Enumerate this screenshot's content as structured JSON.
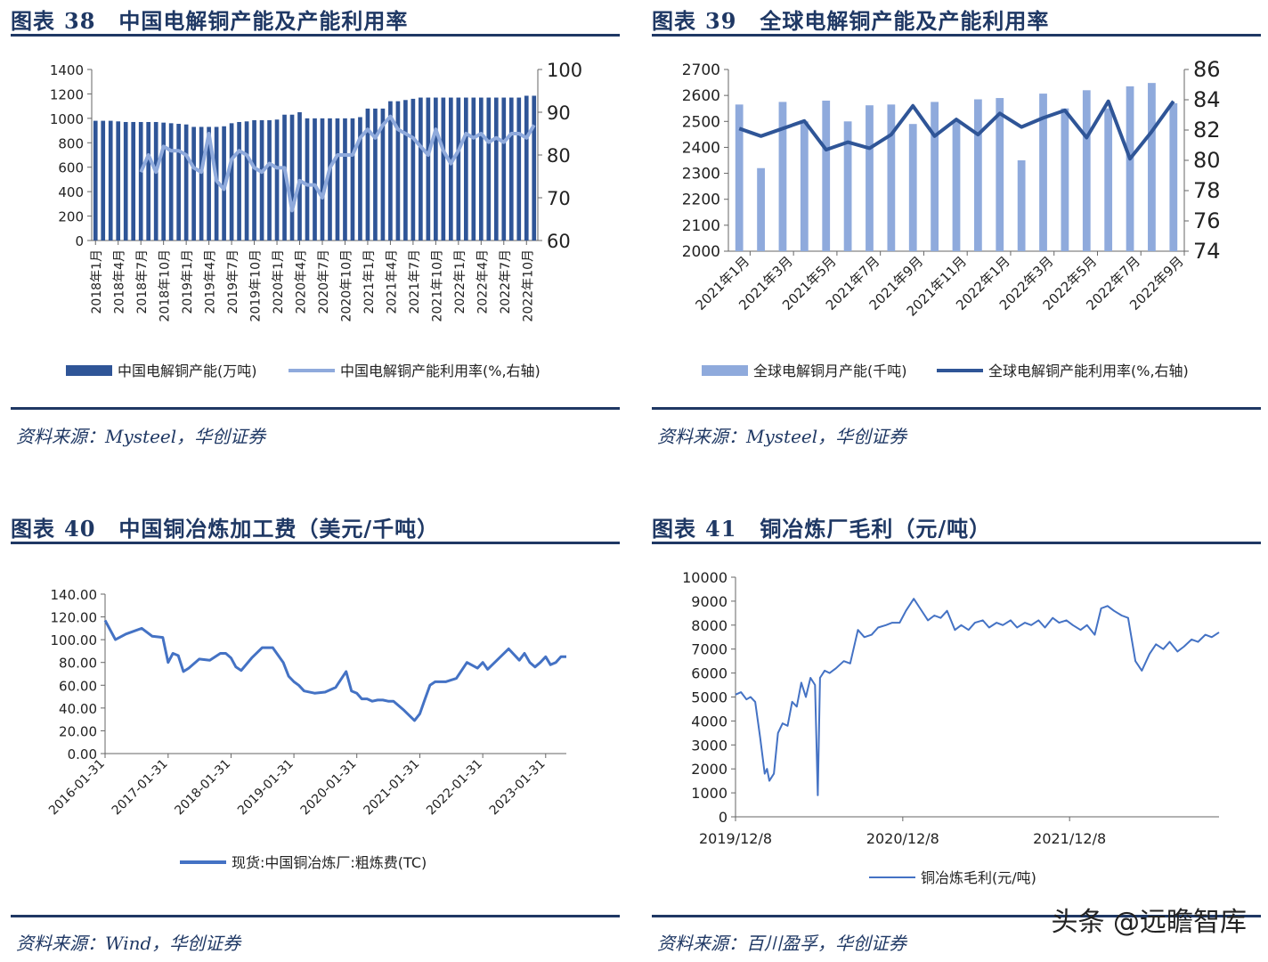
{
  "panels": [
    {
      "title_label": "图表",
      "title_num": "38",
      "title_text": "中国电解铜产能及产能利用率",
      "source": "资料来源：Mysteel，华创证券"
    },
    {
      "title_label": "图表",
      "title_num": "39",
      "title_text": "全球电解铜产能及产能利用率",
      "source": "资料来源：Mysteel，华创证券"
    },
    {
      "title_label": "图表",
      "title_num": "40",
      "title_text": "中国铜冶炼加工费（美元/千吨）",
      "source": "资料来源：Wind，华创证券"
    },
    {
      "title_label": "图表",
      "title_num": "41",
      "title_text": "铜冶炼厂毛利（元/吨）",
      "source": "资料来源：百川盈孚，华创证券"
    }
  ],
  "watermark": "头条 @远瞻智库",
  "chart_data": [
    {
      "type": "bar+line",
      "colors": {
        "bar": "#2f5597",
        "line": "#8faadc"
      },
      "categories": [
        "2018年1月",
        "2018年2月",
        "2018年3月",
        "2018年4月",
        "2018年5月",
        "2018年6月",
        "2018年7月",
        "2018年8月",
        "2018年9月",
        "2018年10月",
        "2018年11月",
        "2018年12月",
        "2019年1月",
        "2019年2月",
        "2019年3月",
        "2019年4月",
        "2019年5月",
        "2019年6月",
        "2019年7月",
        "2019年8月",
        "2019年9月",
        "2019年10月",
        "2019年11月",
        "2019年12月",
        "2020年1月",
        "2020年2月",
        "2020年3月",
        "2020年4月",
        "2020年5月",
        "2020年6月",
        "2020年7月",
        "2020年8月",
        "2020年9月",
        "2020年10月",
        "2020年11月",
        "2020年12月",
        "2021年1月",
        "2021年2月",
        "2021年3月",
        "2021年4月",
        "2021年5月",
        "2021年6月",
        "2021年7月",
        "2021年8月",
        "2021年9月",
        "2021年10月",
        "2021年11月",
        "2021年12月",
        "2022年1月",
        "2022年2月",
        "2022年3月",
        "2022年4月",
        "2022年5月",
        "2022年6月",
        "2022年7月",
        "2022年8月",
        "2022年9月",
        "2022年10月",
        "2022年11月"
      ],
      "x_tick_labels": [
        "2018年1月",
        "2018年4月",
        "2018年7月",
        "2018年10月",
        "2019年1月",
        "2019年4月",
        "2019年7月",
        "2019年10月",
        "2020年1月",
        "2020年4月",
        "2020年7月",
        "2020年10月",
        "2021年1月",
        "2021年4月",
        "2021年7月",
        "2021年10月",
        "2022年1月",
        "2022年4月",
        "2022年7月",
        "2022年10月"
      ],
      "series": [
        {
          "name": "中国电解铜产能(万吨)",
          "axis": "left",
          "values": [
            980,
            980,
            980,
            975,
            970,
            970,
            970,
            970,
            970,
            965,
            960,
            955,
            950,
            930,
            930,
            930,
            930,
            935,
            960,
            970,
            975,
            985,
            985,
            985,
            990,
            1030,
            1030,
            1050,
            1000,
            1000,
            1000,
            1000,
            1000,
            1000,
            1000,
            1010,
            1080,
            1080,
            1080,
            1140,
            1140,
            1150,
            1160,
            1170,
            1170,
            1170,
            1170,
            1170,
            1170,
            1170,
            1170,
            1170,
            1170,
            1170,
            1170,
            1170,
            1170,
            1185,
            1185
          ]
        },
        {
          "name": "中国电解铜产能利用率(%,右轴)",
          "axis": "right",
          "values": [
            null,
            null,
            null,
            null,
            null,
            null,
            76,
            80,
            76,
            82,
            81,
            81,
            80,
            77,
            76,
            85,
            74,
            72,
            79,
            81,
            80,
            77,
            76,
            78,
            77,
            77,
            67,
            74,
            73,
            73,
            70,
            77,
            80,
            80,
            80,
            84,
            86,
            84,
            87,
            89,
            86,
            85,
            84,
            82,
            80,
            86,
            81,
            78,
            81,
            85,
            84,
            85,
            83,
            84,
            83,
            85,
            85,
            84,
            87
          ]
        }
      ],
      "ylim_left": [
        0,
        1400
      ],
      "yticks_left": [
        "0",
        "200",
        "400",
        "600",
        "800",
        "1000",
        "1200",
        "1400"
      ],
      "ylim_right": [
        60,
        100
      ],
      "yticks_right": [
        "60",
        "70",
        "80",
        "90",
        "100"
      ],
      "legend": [
        "中国电解铜产能(万吨)",
        "中国电解铜产能利用率(%,右轴)"
      ]
    },
    {
      "type": "bar+line",
      "colors": {
        "bar": "#8faadc",
        "line": "#2f5597"
      },
      "categories": [
        "2021年1月",
        "2021年2月",
        "2021年3月",
        "2021年4月",
        "2021年5月",
        "2021年6月",
        "2021年7月",
        "2021年8月",
        "2021年9月",
        "2021年10月",
        "2021年11月",
        "2021年12月",
        "2022年1月",
        "2022年2月",
        "2022年3月",
        "2022年4月",
        "2022年5月",
        "2022年6月",
        "2022年7月",
        "2022年8月",
        "2022年9月"
      ],
      "x_tick_labels": [
        "2021年1月",
        "2021年3月",
        "2021年5月",
        "2021年7月",
        "2021年9月",
        "2021年11月",
        "2022年1月",
        "2022年3月",
        "2022年5月",
        "2022年7月",
        "2022年9月"
      ],
      "series": [
        {
          "name": "全球电解铜月产能(千吨)",
          "axis": "left",
          "values": [
            2565,
            2320,
            2575,
            2500,
            2580,
            2500,
            2562,
            2565,
            2490,
            2575,
            2505,
            2585,
            2590,
            2350,
            2607,
            2550,
            2620,
            2550,
            2635,
            2648,
            2570
          ]
        },
        {
          "name": "全球电解铜产能利用率(%,右轴)",
          "axis": "right",
          "values": [
            82.1,
            81.6,
            82.1,
            82.6,
            80.7,
            81.2,
            80.8,
            81.7,
            83.6,
            81.6,
            82.7,
            81.7,
            83.1,
            82.2,
            82.8,
            83.3,
            81.5,
            83.9,
            80.1,
            81.9,
            83.9
          ]
        }
      ],
      "ylim_left": [
        2000,
        2700
      ],
      "yticks_left": [
        "2000",
        "2100",
        "2200",
        "2300",
        "2400",
        "2500",
        "2600",
        "2700"
      ],
      "ylim_right": [
        74,
        86
      ],
      "yticks_right": [
        "74",
        "76",
        "78",
        "80",
        "82",
        "84",
        "86"
      ],
      "legend": [
        "全球电解铜月产能(千吨)",
        "全球电解铜产能利用率(%,右轴)"
      ]
    },
    {
      "type": "line",
      "colors": {
        "line": "#4472c4"
      },
      "x_tick_labels": [
        "2016-01-31",
        "2017-01-31",
        "2018-01-31",
        "2019-01-31",
        "2020-01-31",
        "2021-01-31",
        "2022-01-31",
        "2023-01-31"
      ],
      "xlim": [
        "2016-01-31",
        "2023-05-31"
      ],
      "series": [
        {
          "name": "现货:中国铜冶炼厂:粗炼费(TC)",
          "x": [
            "2016-01-31",
            "2016-03-31",
            "2016-05-31",
            "2016-08-31",
            "2016-10-31",
            "2016-12-31",
            "2017-01-31",
            "2017-02-28",
            "2017-03-31",
            "2017-04-30",
            "2017-05-31",
            "2017-07-31",
            "2017-09-30",
            "2017-11-30",
            "2017-12-31",
            "2018-01-31",
            "2018-02-28",
            "2018-03-31",
            "2018-05-31",
            "2018-07-31",
            "2018-09-30",
            "2018-11-30",
            "2018-12-31",
            "2019-01-31",
            "2019-02-28",
            "2019-03-31",
            "2019-05-31",
            "2019-07-31",
            "2019-09-30",
            "2019-11-30",
            "2019-12-31",
            "2020-01-31",
            "2020-02-29",
            "2020-03-31",
            "2020-04-30",
            "2020-05-31",
            "2020-06-30",
            "2020-07-31",
            "2020-08-31",
            "2020-10-31",
            "2020-12-31",
            "2021-01-31",
            "2021-02-28",
            "2021-03-31",
            "2021-04-30",
            "2021-05-31",
            "2021-06-30",
            "2021-08-31",
            "2021-10-31",
            "2021-12-31",
            "2022-01-31",
            "2022-02-28",
            "2022-04-30",
            "2022-06-30",
            "2022-08-31",
            "2022-09-30",
            "2022-10-31",
            "2022-11-30",
            "2022-12-31",
            "2023-01-31",
            "2023-02-28",
            "2023-03-31",
            "2023-04-30",
            "2023-05-31"
          ],
          "values": [
            117,
            100,
            105,
            110,
            103,
            102,
            80,
            88,
            86,
            72,
            75,
            83,
            82,
            88,
            88,
            84,
            76,
            73,
            84,
            93,
            93,
            80,
            68,
            63,
            60,
            55,
            53,
            54,
            58,
            72,
            55,
            53,
            48,
            48,
            46,
            47,
            47,
            46,
            46,
            38,
            29,
            35,
            47,
            60,
            63,
            63,
            63,
            66,
            80,
            75,
            80,
            74,
            83,
            92,
            82,
            88,
            80,
            76,
            80,
            85,
            78,
            80,
            85,
            85
          ]
        }
      ],
      "ylim": [
        0,
        140
      ],
      "yticks": [
        "0.00",
        "20.00",
        "40.00",
        "60.00",
        "80.00",
        "100.00",
        "120.00",
        "140.00"
      ],
      "legend": [
        "现货:中国铜冶炼厂:粗炼费(TC)"
      ]
    },
    {
      "type": "line",
      "colors": {
        "line": "#4472c4"
      },
      "x_tick_labels": [
        "2019/12/8",
        "2020/12/8",
        "2021/12/8"
      ],
      "xlim": [
        "2019/12/8",
        "2022/10/31"
      ],
      "series": [
        {
          "name": "铜冶炼毛利(元/吨)",
          "x": [
            "2019/12/8",
            "2019/12/20",
            "2020/1/1",
            "2020/1/10",
            "2020/1/20",
            "2020/1/31",
            "2020/2/10",
            "2020/2/15",
            "2020/2/20",
            "2020/3/1",
            "2020/3/10",
            "2020/3/20",
            "2020/3/31",
            "2020/4/10",
            "2020/4/20",
            "2020/4/30",
            "2020/5/10",
            "2020/5/20",
            "2020/5/30",
            "2020/6/5",
            "2020/6/10",
            "2020/6/20",
            "2020/7/1",
            "2020/7/15",
            "2020/8/1",
            "2020/8/15",
            "2020/9/1",
            "2020/9/15",
            "2020/10/1",
            "2020/10/15",
            "2020/11/1",
            "2020/11/15",
            "2020/12/1",
            "2020/12/15",
            "2021/1/1",
            "2021/1/15",
            "2021/2/1",
            "2021/2/15",
            "2021/3/1",
            "2021/3/15",
            "2021/4/1",
            "2021/4/15",
            "2021/5/1",
            "2021/5/15",
            "2021/6/1",
            "2021/6/15",
            "2021/7/1",
            "2021/7/15",
            "2021/8/1",
            "2021/8/15",
            "2021/9/1",
            "2021/9/15",
            "2021/10/1",
            "2021/10/15",
            "2021/11/1",
            "2021/11/15",
            "2021/12/1",
            "2021/12/15",
            "2022/1/1",
            "2022/1/15",
            "2022/2/1",
            "2022/2/15",
            "2022/3/1",
            "2022/3/15",
            "2022/4/1",
            "2022/4/15",
            "2022/5/1",
            "2022/5/15",
            "2022/6/1",
            "2022/6/15",
            "2022/7/1",
            "2022/7/15",
            "2022/8/1",
            "2022/8/15",
            "2022/9/1",
            "2022/9/15",
            "2022/10/1",
            "2022/10/15",
            "2022/10/31"
          ],
          "values": [
            5100,
            5200,
            4900,
            5000,
            4800,
            3300,
            1800,
            2000,
            1500,
            1800,
            3500,
            3900,
            3800,
            4800,
            4600,
            5600,
            5000,
            5800,
            5500,
            900,
            5800,
            6100,
            6000,
            6200,
            6500,
            6400,
            7800,
            7500,
            7600,
            7900,
            8000,
            8100,
            8100,
            8600,
            9100,
            8700,
            8200,
            8400,
            8300,
            8600,
            7800,
            8000,
            7800,
            8100,
            8200,
            7900,
            8100,
            8000,
            8200,
            7900,
            8100,
            8000,
            8200,
            7900,
            8300,
            8100,
            8200,
            8000,
            7800,
            8000,
            7600,
            8700,
            8800,
            8600,
            8400,
            8300,
            6500,
            6100,
            6800,
            7200,
            7000,
            7300,
            6900,
            7100,
            7400,
            7300,
            7600,
            7500,
            7700
          ]
        }
      ],
      "ylim": [
        0,
        10000
      ],
      "yticks": [
        "0",
        "1000",
        "2000",
        "3000",
        "4000",
        "5000",
        "6000",
        "7000",
        "8000",
        "9000",
        "10000"
      ],
      "legend": [
        "铜冶炼毛利(元/吨)"
      ]
    }
  ]
}
